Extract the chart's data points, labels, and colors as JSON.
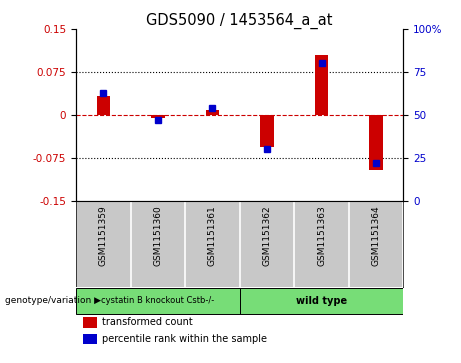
{
  "title": "GDS5090 / 1453564_a_at",
  "samples": [
    "GSM1151359",
    "GSM1151360",
    "GSM1151361",
    "GSM1151362",
    "GSM1151363",
    "GSM1151364"
  ],
  "red_values": [
    0.034,
    -0.005,
    0.008,
    -0.055,
    0.105,
    -0.095
  ],
  "blue_values_pct": [
    63,
    47,
    54,
    30,
    80,
    22
  ],
  "ylim_left": [
    -0.15,
    0.15
  ],
  "ylim_right": [
    0,
    100
  ],
  "yticks_left": [
    -0.15,
    -0.075,
    0,
    0.075,
    0.15
  ],
  "yticks_right": [
    0,
    25,
    50,
    75,
    100
  ],
  "dotted_hlines": [
    0.075,
    -0.075
  ],
  "dashed_hline": 0.0,
  "bar_width": 0.25,
  "red_color": "#cc0000",
  "blue_color": "#0000cc",
  "group1_label": "cystatin B knockout Cstb-/-",
  "group1_samples": [
    0,
    1,
    2
  ],
  "group2_label": "wild type",
  "group2_samples": [
    3,
    4,
    5
  ],
  "group_color": "#77dd77",
  "sample_col_color": "#c8c8c8",
  "legend_red": "transformed count",
  "legend_blue": "percentile rank within the sample",
  "left_axis_color": "#cc0000",
  "right_axis_color": "#0000cc",
  "title_color": "#000000",
  "genotype_label": "genotype/variation"
}
